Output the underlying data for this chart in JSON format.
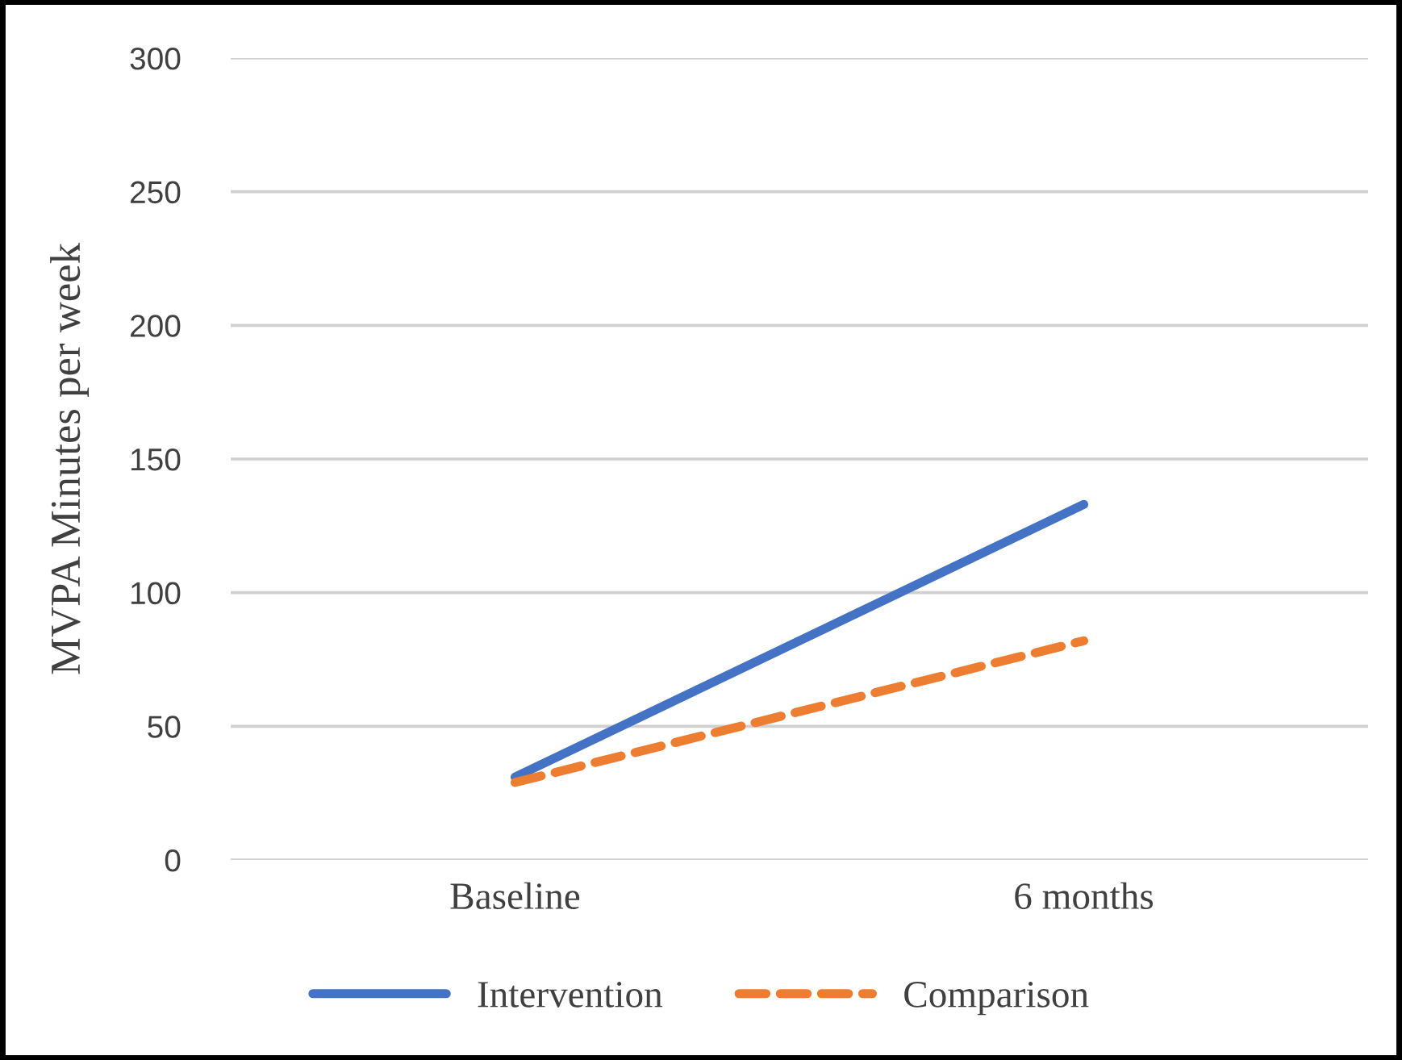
{
  "chart_data": {
    "type": "line",
    "ylabel": "MVPA Minutes per week",
    "categories": [
      "Baseline",
      "6 months"
    ],
    "series": [
      {
        "name": "Intervention",
        "color": "#4472c4",
        "values": [
          31,
          133
        ],
        "line_style": "solid"
      },
      {
        "name": "Comparison",
        "color": "#ed7d31",
        "values": [
          29,
          82
        ],
        "line_style": "dashed"
      }
    ],
    "ylim": [
      0,
      300
    ],
    "yticks": [
      0,
      50,
      100,
      150,
      200,
      250,
      300
    ],
    "grid": "y",
    "legend": "bottom",
    "marker": "none"
  }
}
